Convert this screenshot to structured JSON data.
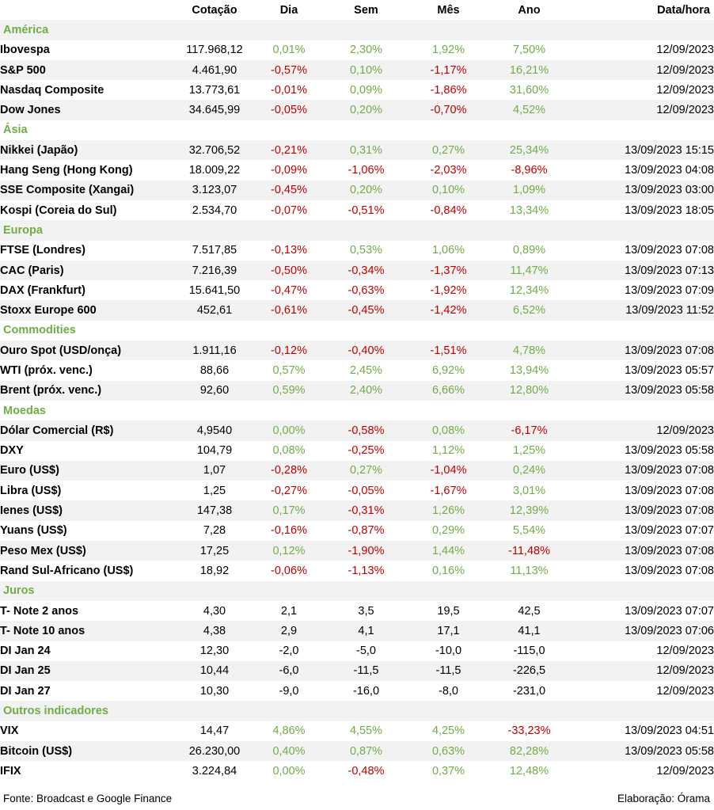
{
  "headers": {
    "name": "",
    "quote": "Cotação",
    "day": "Dia",
    "week": "Sem",
    "month": "Mês",
    "year": "Ano",
    "date": "Data/hora"
  },
  "colors": {
    "positive": "#70ad47",
    "negative": "#c00000",
    "section": "#70ad47",
    "shade": "#f2f2f2"
  },
  "sections": [
    {
      "title": "América",
      "rows": [
        {
          "name": "Ibovespa",
          "quote": "117.968,12",
          "day": "0,01%",
          "week": "2,30%",
          "month": "1,92%",
          "year": "7,50%",
          "date": "12/09/2023"
        },
        {
          "name": "S&P 500",
          "quote": "4.461,90",
          "day": "-0,57%",
          "week": "0,10%",
          "month": "-1,17%",
          "year": "16,21%",
          "date": "12/09/2023"
        },
        {
          "name": "Nasdaq Composite",
          "quote": "13.773,61",
          "day": "-0,01%",
          "week": "0,09%",
          "month": "-1,86%",
          "year": "31,60%",
          "date": "12/09/2023"
        },
        {
          "name": "Dow Jones",
          "quote": "34.645,99",
          "day": "-0,05%",
          "week": "0,20%",
          "month": "-0,70%",
          "year": "4,52%",
          "date": "12/09/2023"
        }
      ]
    },
    {
      "title": "Ásia",
      "rows": [
        {
          "name": "Nikkei (Japão)",
          "quote": "32.706,52",
          "day": "-0,21%",
          "week": "0,31%",
          "month": "0,27%",
          "year": "25,34%",
          "date": "13/09/2023 15:15"
        },
        {
          "name": "Hang Seng (Hong Kong)",
          "quote": "18.009,22",
          "day": "-0,09%",
          "week": "-1,06%",
          "month": "-2,03%",
          "year": "-8,96%",
          "date": "13/09/2023 04:08"
        },
        {
          "name": "SSE Composite (Xangai)",
          "quote": "3.123,07",
          "day": "-0,45%",
          "week": "0,20%",
          "month": "0,10%",
          "year": "1,09%",
          "date": "13/09/2023 03:00"
        },
        {
          "name": "Kospi (Coreia do Sul)",
          "quote": "2.534,70",
          "day": "-0,07%",
          "week": "-0,51%",
          "month": "-0,84%",
          "year": "13,34%",
          "date": "13/09/2023 18:05"
        }
      ]
    },
    {
      "title": "Europa",
      "rows": [
        {
          "name": "FTSE (Londres)",
          "quote": "7.517,85",
          "day": "-0,13%",
          "week": "0,53%",
          "month": "1,06%",
          "year": "0,89%",
          "date": "13/09/2023 07:08"
        },
        {
          "name": "CAC (Paris)",
          "quote": "7.216,39",
          "day": "-0,50%",
          "week": "-0,34%",
          "month": "-1,37%",
          "year": "11,47%",
          "date": "13/09/2023 07:13"
        },
        {
          "name": "DAX (Frankfurt)",
          "quote": "15.641,50",
          "day": "-0,47%",
          "week": "-0,63%",
          "month": "-1,92%",
          "year": "12,34%",
          "date": "13/09/2023 07:09"
        },
        {
          "name": "Stoxx Europe 600",
          "quote": "452,61",
          "day": "-0,61%",
          "week": "-0,45%",
          "month": "-1,42%",
          "year": "6,52%",
          "date": "13/09/2023 11:52"
        }
      ]
    },
    {
      "title": "Commodities",
      "rows": [
        {
          "name": "Ouro Spot (USD/onça)",
          "quote": "1.911,16",
          "day": "-0,12%",
          "week": "-0,40%",
          "month": "-1,51%",
          "year": "4,78%",
          "date": "13/09/2023 07:08"
        },
        {
          "name": "WTI (próx. venc.)",
          "quote": "88,66",
          "day": "0,57%",
          "week": "2,45%",
          "month": "6,92%",
          "year": "13,94%",
          "date": "13/09/2023 05:57"
        },
        {
          "name": "Brent (próx. venc.)",
          "quote": "92,60",
          "day": "0,59%",
          "week": "2,40%",
          "month": "6,66%",
          "year": "12,80%",
          "date": "13/09/2023 05:58"
        }
      ]
    },
    {
      "title": "Moedas",
      "rows": [
        {
          "name": "Dólar Comercial (R$)",
          "quote": "4,9540",
          "day": "0,00%",
          "week": "-0,58%",
          "month": "0,08%",
          "year": "-6,17%",
          "date": "12/09/2023"
        },
        {
          "name": "DXY",
          "quote": "104,79",
          "day": "0,08%",
          "week": "-0,25%",
          "month": "1,12%",
          "year": "1,25%",
          "date": "13/09/2023 05:58"
        },
        {
          "name": "Euro (US$)",
          "quote": "1,07",
          "day": "-0,28%",
          "week": "0,27%",
          "month": "-1,04%",
          "year": "0,24%",
          "date": "13/09/2023 07:08"
        },
        {
          "name": "Libra (US$)",
          "quote": "1,25",
          "day": "-0,27%",
          "week": "-0,05%",
          "month": "-1,67%",
          "year": "3,01%",
          "date": "13/09/2023 07:08"
        },
        {
          "name": "Ienes (US$)",
          "quote": "147,38",
          "day": "0,17%",
          "week": "-0,31%",
          "month": "1,26%",
          "year": "12,39%",
          "date": "13/09/2023 07:08"
        },
        {
          "name": "Yuans (US$)",
          "quote": "7,28",
          "day": "-0,16%",
          "week": "-0,87%",
          "month": "0,29%",
          "year": "5,54%",
          "date": "13/09/2023 07:07"
        },
        {
          "name": "Peso Mex (US$)",
          "quote": "17,25",
          "day": "0,12%",
          "week": "-1,90%",
          "month": "1,44%",
          "year": "-11,48%",
          "date": "13/09/2023 07:08"
        },
        {
          "name": "Rand Sul-Africano (US$)",
          "quote": "18,92",
          "day": "-0,06%",
          "week": "-1,13%",
          "month": "0,16%",
          "year": "11,13%",
          "date": "13/09/2023 07:08"
        }
      ]
    },
    {
      "title": "Juros",
      "rows": [
        {
          "name": "T- Note 2 anos",
          "quote": "4,30",
          "day": "2,1",
          "week": "3,5",
          "month": "19,5",
          "year": "42,5",
          "date": "13/09/2023 07:07"
        },
        {
          "name": "T- Note 10 anos",
          "quote": "4,38",
          "day": "2,9",
          "week": "4,1",
          "month": "17,1",
          "year": "41,1",
          "date": "13/09/2023 07:06"
        },
        {
          "name": "DI Jan 24",
          "quote": "12,30",
          "day": "-2,0",
          "week": "-5,0",
          "month": "-10,0",
          "year": "-115,0",
          "date": "12/09/2023"
        },
        {
          "name": "DI Jan 25",
          "quote": "10,44",
          "day": "-6,0",
          "week": "-11,5",
          "month": "-11,5",
          "year": "-226,5",
          "date": "12/09/2023"
        },
        {
          "name": "DI Jan 27",
          "quote": "10,30",
          "day": "-9,0",
          "week": "-16,0",
          "month": "-8,0",
          "year": "-231,0",
          "date": "12/09/2023"
        }
      ]
    },
    {
      "title": "Outros indicadores",
      "rows": [
        {
          "name": "VIX",
          "quote": "14,47",
          "day": "4,86%",
          "week": "4,55%",
          "month": "4,25%",
          "year": "-33,23%",
          "date": "13/09/2023 04:51"
        },
        {
          "name": "Bitcoin (US$)",
          "quote": "26.230,00",
          "day": "0,40%",
          "week": "0,87%",
          "month": "0,63%",
          "year": "82,28%",
          "date": "13/09/2023 05:58"
        },
        {
          "name": "IFIX",
          "quote": "3.224,84",
          "day": "0,00%",
          "week": "-0,48%",
          "month": "0,37%",
          "year": "12,48%",
          "date": "12/09/2023"
        }
      ]
    }
  ],
  "footer": {
    "source": "Fonte: Broadcast e Google Finance",
    "credit": "Elaboração: Órama"
  }
}
